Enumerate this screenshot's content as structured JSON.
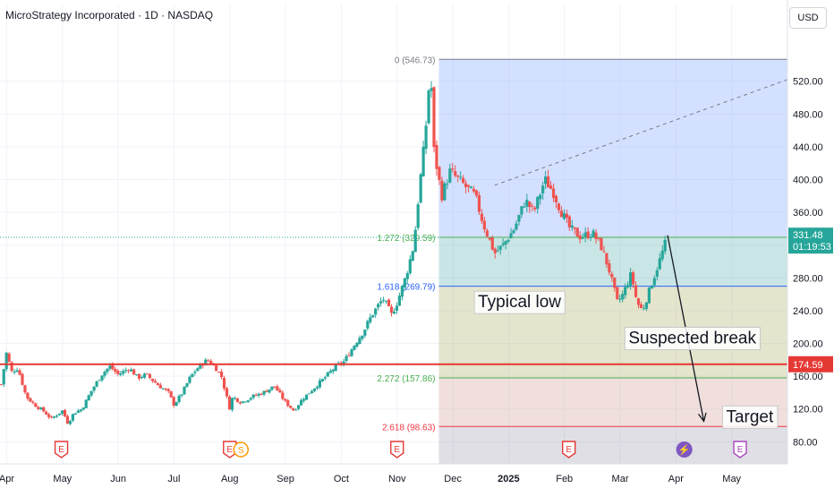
{
  "header": {
    "title": "MicroStrategy Incorporated · 1D · NASDAQ",
    "currency": "USD"
  },
  "colors": {
    "up": "#26a69a",
    "down": "#ef5350",
    "support_line": "#e53935",
    "fib_blue": "#2962ff",
    "fib_red": "#f23645",
    "fib_green_text": "#4caf50"
  },
  "chart_data": {
    "type": "candlestick",
    "title": "MicroStrategy Incorporated · 1D · NASDAQ",
    "currency": "USD",
    "y_ticks": [
      80,
      120,
      160,
      200,
      240,
      280,
      320,
      360,
      400,
      440,
      480,
      520
    ],
    "y_tick_labels": [
      "80.00",
      "120.00",
      "160.00",
      "200.00",
      "240.00",
      "280.00",
      "320.00",
      "360.00",
      "400.00",
      "440.00",
      "480.00",
      "520.00"
    ],
    "ylim": [
      53,
      582
    ],
    "x_ticks": [
      {
        "label": "Apr",
        "month": 3.0
      },
      {
        "label": "May",
        "month": 4.0
      },
      {
        "label": "Jun",
        "month": 5.0
      },
      {
        "label": "Jul",
        "month": 6.0
      },
      {
        "label": "Aug",
        "month": 7.0
      },
      {
        "label": "Sep",
        "month": 8.0
      },
      {
        "label": "Oct",
        "month": 9.0
      },
      {
        "label": "Nov",
        "month": 10.0
      },
      {
        "label": "Dec",
        "month": 11.0
      },
      {
        "label": "2025",
        "month": 12.0,
        "bold": true
      },
      {
        "label": "Feb",
        "month": 13.0
      },
      {
        "label": "Mar",
        "month": 14.0
      },
      {
        "label": "Apr",
        "month": 15.0
      },
      {
        "label": "May",
        "month": 16.0
      }
    ],
    "xlim_month": [
      2.88,
      17.0
    ],
    "price_path": [
      [
        2.9,
        150
      ],
      [
        3.0,
        190
      ],
      [
        3.08,
        165
      ],
      [
        3.2,
        170
      ],
      [
        3.35,
        135
      ],
      [
        3.5,
        125
      ],
      [
        3.65,
        118
      ],
      [
        3.8,
        108
      ],
      [
        4.0,
        118
      ],
      [
        4.1,
        102
      ],
      [
        4.2,
        115
      ],
      [
        4.35,
        120
      ],
      [
        4.5,
        140
      ],
      [
        4.7,
        162
      ],
      [
        4.85,
        172
      ],
      [
        5.0,
        162
      ],
      [
        5.2,
        170
      ],
      [
        5.35,
        158
      ],
      [
        5.5,
        162
      ],
      [
        5.7,
        150
      ],
      [
        5.9,
        140
      ],
      [
        6.0,
        125
      ],
      [
        6.15,
        140
      ],
      [
        6.3,
        160
      ],
      [
        6.45,
        172
      ],
      [
        6.6,
        180
      ],
      [
        6.75,
        170
      ],
      [
        6.85,
        160
      ],
      [
        7.0,
        120
      ],
      [
        7.05,
        135
      ],
      [
        7.2,
        128
      ],
      [
        7.4,
        135
      ],
      [
        7.6,
        140
      ],
      [
        7.8,
        148
      ],
      [
        8.0,
        128
      ],
      [
        8.15,
        118
      ],
      [
        8.3,
        132
      ],
      [
        8.5,
        145
      ],
      [
        8.7,
        158
      ],
      [
        8.9,
        172
      ],
      [
        9.05,
        178
      ],
      [
        9.25,
        200
      ],
      [
        9.4,
        215
      ],
      [
        9.55,
        235
      ],
      [
        9.75,
        255
      ],
      [
        9.9,
        235
      ],
      [
        10.0,
        250
      ],
      [
        10.15,
        280
      ],
      [
        10.3,
        320
      ],
      [
        10.4,
        390
      ],
      [
        10.5,
        450
      ],
      [
        10.6,
        540
      ],
      [
        10.65,
        440
      ],
      [
        10.8,
        380
      ],
      [
        10.95,
        410
      ],
      [
        11.1,
        400
      ],
      [
        11.25,
        390
      ],
      [
        11.4,
        380
      ],
      [
        11.55,
        345
      ],
      [
        11.75,
        310
      ],
      [
        11.9,
        320
      ],
      [
        12.1,
        340
      ],
      [
        12.3,
        375
      ],
      [
        12.45,
        360
      ],
      [
        12.65,
        400
      ],
      [
        12.8,
        385
      ],
      [
        12.95,
        360
      ],
      [
        13.1,
        340
      ],
      [
        13.3,
        330
      ],
      [
        13.5,
        335
      ],
      [
        13.65,
        320
      ],
      [
        13.8,
        290
      ],
      [
        13.95,
        250
      ],
      [
        14.05,
        260
      ],
      [
        14.2,
        285
      ],
      [
        14.3,
        250
      ],
      [
        14.4,
        240
      ],
      [
        14.5,
        260
      ],
      [
        14.65,
        290
      ],
      [
        14.75,
        310
      ],
      [
        14.85,
        331
      ]
    ],
    "last_price": "331.48",
    "countdown": "01:19:53",
    "support_level": "174.59",
    "support_price": 174.59,
    "fib_levels": [
      {
        "label": "0 (546.73)",
        "price": 546.73
      },
      {
        "label": "1.272 (329.59)",
        "price": 329.59
      },
      {
        "label": "1.618 (269.79)",
        "price": 269.79
      },
      {
        "label": "2.272 (157.86)",
        "price": 157.86
      },
      {
        "label": "2.618 (98.63)",
        "price": 98.63
      }
    ],
    "annotations": [
      {
        "text": "Typical low",
        "month": 11.45,
        "price": 244
      },
      {
        "text": "Suspected break",
        "month": 14.15,
        "price": 200
      },
      {
        "text": "Target",
        "month": 15.9,
        "price": 104
      }
    ],
    "arrow": {
      "from_month": 14.85,
      "from_price": 332,
      "to_month": 15.5,
      "to_price": 105
    },
    "trend_line": {
      "from_month": 11.75,
      "from_price": 393,
      "to_month": 17.0,
      "to_price": 522
    },
    "event_markers": [
      {
        "month": 3.98,
        "label": "E"
      },
      {
        "month": 7.0,
        "label": "E"
      },
      {
        "month": 7.2,
        "label": "S"
      },
      {
        "month": 10.0,
        "label": "E"
      },
      {
        "month": 13.08,
        "label": "E"
      },
      {
        "month": 15.15,
        "label": "⚡"
      },
      {
        "month": 16.15,
        "label": "E"
      }
    ]
  }
}
